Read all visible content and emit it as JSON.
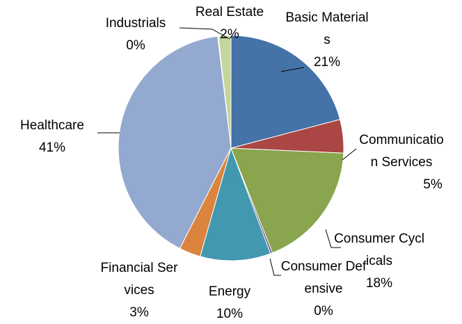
{
  "chart_data": {
    "type": "pie",
    "categories": [
      "Basic Materials",
      "Communication Services",
      "Consumer Cyclicals",
      "Consumer Defensive",
      "Energy",
      "Financial Services",
      "Healthcare",
      "Industrials",
      "Real Estate"
    ],
    "values": [
      20.9,
      4.8,
      18.3,
      0.3,
      10.1,
      3.1,
      40.6,
      0.1,
      1.8
    ],
    "value_labels": [
      "21%",
      "5%",
      "18%",
      "0%",
      "10%",
      "3%",
      "41%",
      "0%",
      "2%"
    ],
    "colors": [
      "#4572a7",
      "#aa4643",
      "#89a54e",
      "#71588f",
      "#4198af",
      "#db843d",
      "#93a9cf",
      "#8f7fb0",
      "#c3d69b"
    ]
  }
}
